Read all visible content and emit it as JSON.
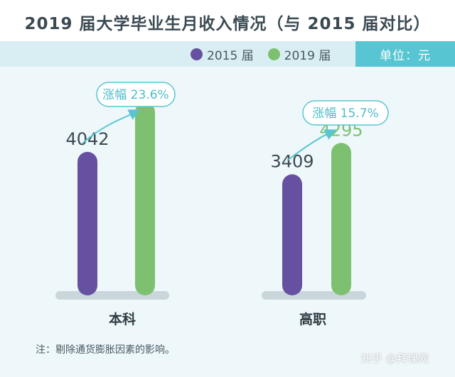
{
  "title": "2019 届大学毕业生月收入情况（与 2015 届对比）",
  "legend": [
    {
      "label": "2015 届",
      "color": "#6651a0"
    },
    {
      "label": "2019 届",
      "color": "#7dc170"
    }
  ],
  "unit": "单位：元",
  "note": "注：剔除通货膨胀因素的影响。",
  "watermark": "知乎 @拜课网",
  "chart_data": {
    "type": "bar",
    "categories": [
      "本科",
      "高职"
    ],
    "series": [
      {
        "name": "2015 届",
        "values": [
          4042,
          3409
        ],
        "color": "#6651a0"
      },
      {
        "name": "2019 届",
        "values": [
          5440,
          4295
        ],
        "color": "#7dc170"
      }
    ],
    "annotations": [
      "涨幅 23.6%",
      "涨幅 15.7%"
    ],
    "ylim": [
      0,
      6560
    ],
    "grid": false,
    "legend_position": "top"
  }
}
